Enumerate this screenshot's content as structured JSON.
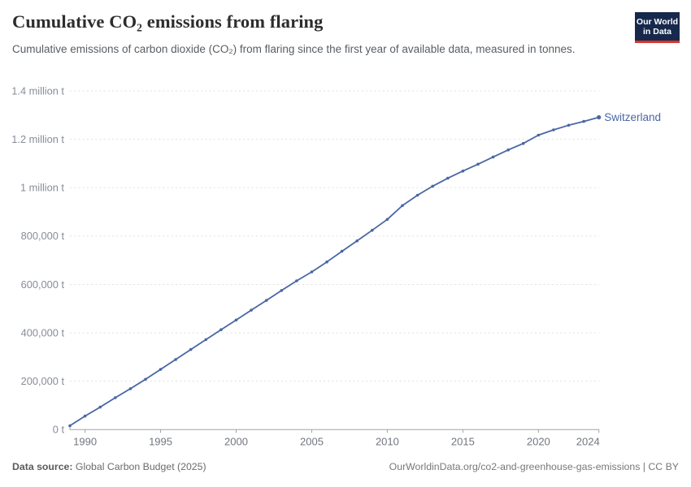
{
  "header": {
    "title": "Cumulative CO₂ emissions from flaring",
    "subtitle": "Cumulative emissions of carbon dioxide (CO₂) from flaring since the first year of available data, measured in tonnes.",
    "logo": {
      "line1": "Our World",
      "line2": "in Data",
      "bg_color": "#16294c",
      "stripe_color": "#d8352a"
    }
  },
  "chart_data": {
    "type": "line",
    "title": "Cumulative CO₂ emissions from flaring",
    "xlabel": "",
    "ylabel": "",
    "unit": "t",
    "grid": "horizontal-dashed",
    "legend_position": "end-of-line-label",
    "xlim": [
      1989,
      2024
    ],
    "ylim": [
      0,
      1400000
    ],
    "x": [
      1989,
      1990,
      1991,
      1992,
      1993,
      1994,
      1995,
      1996,
      1997,
      1998,
      1999,
      2000,
      2001,
      2002,
      2003,
      2004,
      2005,
      2006,
      2007,
      2008,
      2009,
      2010,
      2011,
      2012,
      2013,
      2014,
      2015,
      2016,
      2017,
      2018,
      2019,
      2020,
      2021,
      2022,
      2023,
      2024
    ],
    "series": [
      {
        "name": "Switzerland",
        "color": "#4a67a3",
        "values": [
          16000,
          56000,
          93000,
          132000,
          169000,
          208000,
          249000,
          290000,
          331000,
          372000,
          413000,
          453000,
          494000,
          534000,
          575000,
          615000,
          652000,
          693000,
          737000,
          780000,
          824000,
          869000,
          926000,
          969000,
          1006000,
          1039000,
          1069000,
          1097000,
          1127000,
          1156000,
          1183000,
          1217000,
          1239000,
          1258000,
          1274000,
          1291000
        ]
      }
    ],
    "y_ticks": {
      "values": [
        0,
        200000,
        400000,
        600000,
        800000,
        1000000,
        1200000,
        1400000
      ],
      "labels": [
        "0 t",
        "200,000 t",
        "400,000 t",
        "600,000 t",
        "800,000 t",
        "1 million t",
        "1.2 million t",
        "1.4 million t"
      ]
    },
    "x_ticks": {
      "values": [
        1990,
        1995,
        2000,
        2005,
        2010,
        2015,
        2020,
        2024
      ],
      "labels": [
        "1990",
        "1995",
        "2000",
        "2005",
        "2010",
        "2015",
        "2020",
        "2024"
      ]
    },
    "colors": {
      "gridline": "#e0e0e0",
      "axis": "#a3a3a3",
      "y_tick_label": "#888d96",
      "x_tick_label": "#71767e"
    }
  },
  "footer": {
    "source_label": "Data source:",
    "source_value": "Global Carbon Budget (2025)",
    "credit": "OurWorldinData.org/co2-and-greenhouse-gas-emissions | CC BY"
  }
}
